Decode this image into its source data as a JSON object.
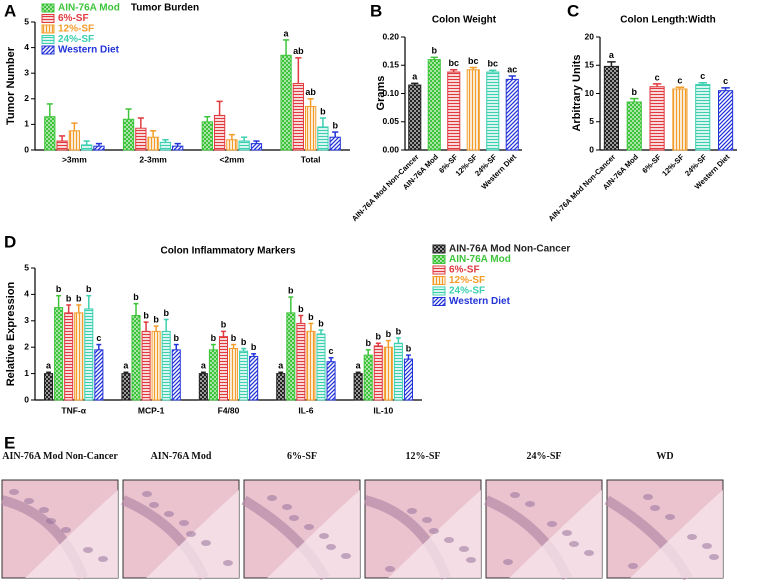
{
  "chart_data": [
    {
      "panel": "A",
      "type": "bar",
      "title": "Tumor Burden",
      "ylabel": "Tumor Number",
      "categories": [
        ">3mm",
        "2-3mm",
        "<2mm",
        "Total"
      ],
      "ylim": [
        0,
        5
      ],
      "yticks": [
        0,
        1,
        2,
        3,
        4,
        5
      ],
      "legend": "upper left",
      "series": [
        {
          "name": "AIN-76A Mod",
          "color": "#3ec43a",
          "hatch": "checker",
          "values": [
            1.3,
            1.2,
            1.1,
            3.7
          ],
          "errors": [
            0.5,
            0.4,
            0.2,
            0.6
          ],
          "significance": [
            null,
            null,
            null,
            "a"
          ]
        },
        {
          "name": "6%-SF",
          "color": "#e0393e",
          "hatch": "hlines",
          "values": [
            0.35,
            0.85,
            1.35,
            2.6
          ],
          "errors": [
            0.2,
            0.4,
            0.55,
            1.0
          ],
          "significance": [
            null,
            null,
            null,
            "ab"
          ]
        },
        {
          "name": "12%-SF",
          "color": "#f39c2a",
          "hatch": "vlines",
          "values": [
            0.75,
            0.5,
            0.4,
            1.7
          ],
          "errors": [
            0.3,
            0.25,
            0.2,
            0.3
          ],
          "significance": [
            null,
            null,
            null,
            "ab"
          ]
        },
        {
          "name": "24%-SF",
          "color": "#3ccfb0",
          "hatch": "hlines",
          "values": [
            0.2,
            0.3,
            0.35,
            0.9
          ],
          "errors": [
            0.15,
            0.1,
            0.15,
            0.35
          ],
          "significance": [
            null,
            null,
            null,
            "b"
          ]
        },
        {
          "name": "Western Diet",
          "color": "#2233d8",
          "hatch": "diag",
          "values": [
            0.15,
            0.15,
            0.25,
            0.5
          ],
          "errors": [
            0.1,
            0.1,
            0.1,
            0.2
          ],
          "significance": [
            null,
            null,
            null,
            "b"
          ]
        }
      ]
    },
    {
      "panel": "B",
      "type": "bar",
      "title": "Colon Weight",
      "ylabel": "Grams",
      "categories": [
        "AIN-76A Mod Non-Cancer",
        "AIN-76A Mod",
        "6%-SF",
        "12%-SF",
        "24%-SF",
        "Western Diet"
      ],
      "ylim": [
        0,
        0.2
      ],
      "yticks": [
        {
          "value": 0,
          "label": "0.00"
        },
        {
          "value": 0.05,
          "label": "0.05"
        },
        {
          "value": 0.1,
          "label": "0.10"
        },
        {
          "value": 0.15,
          "label": "0.15"
        },
        {
          "value": 0.2,
          "label": "0.20"
        }
      ],
      "values": [
        0.115,
        0.16,
        0.138,
        0.142,
        0.138,
        0.125
      ],
      "errors": [
        0.003,
        0.004,
        0.004,
        0.004,
        0.003,
        0.006
      ],
      "significance": [
        "a",
        "b",
        "bc",
        "bc",
        "bc",
        "ac"
      ],
      "colors": [
        "#222222",
        "#3ec43a",
        "#e0393e",
        "#f39c2a",
        "#3ccfb0",
        "#2233d8"
      ],
      "hatches": [
        "checker",
        "checker",
        "hlines",
        "vlines",
        "hlines",
        "diag"
      ]
    },
    {
      "panel": "C",
      "type": "bar",
      "title": "Colon Length:Width",
      "ylabel": "Arbitrary Units",
      "categories": [
        "AIN-76A Mod Non-Cancer",
        "AIN-76A Mod",
        "6%-SF",
        "12%-SF",
        "24%-SF",
        "Western Diet"
      ],
      "ylim": [
        0,
        20
      ],
      "yticks": [
        0,
        5,
        10,
        15,
        20
      ],
      "values": [
        14.8,
        8.5,
        11.2,
        10.8,
        11.6,
        10.5
      ],
      "errors": [
        0.8,
        0.6,
        0.5,
        0.3,
        0.3,
        0.5
      ],
      "significance": [
        "a",
        "b",
        "c",
        "c",
        "c",
        "c"
      ],
      "colors": [
        "#222222",
        "#3ec43a",
        "#e0393e",
        "#f39c2a",
        "#3ccfb0",
        "#2233d8"
      ],
      "hatches": [
        "checker",
        "checker",
        "hlines",
        "vlines",
        "hlines",
        "diag"
      ]
    },
    {
      "panel": "D",
      "type": "bar",
      "title": "Colon Inflammatory Markers",
      "ylabel": "Relative Expression",
      "categories": [
        "TNF-α",
        "MCP-1",
        "F4/80",
        "IL-6",
        "IL-10"
      ],
      "ylim": [
        0,
        5
      ],
      "yticks": [
        0,
        1,
        2,
        3,
        4,
        5
      ],
      "legend": "right",
      "series": [
        {
          "name": "AIN-76A Mod Non-Cancer",
          "color": "#222222",
          "hatch": "checker",
          "values": [
            1,
            1,
            1,
            1,
            1
          ],
          "errors": [
            0.05,
            0.05,
            0.05,
            0.05,
            0.05
          ],
          "significance": [
            "a",
            "a",
            "a",
            "a",
            "a"
          ]
        },
        {
          "name": "AIN-76A Mod",
          "color": "#3ec43a",
          "hatch": "checker",
          "values": [
            3.5,
            3.2,
            1.9,
            3.3,
            1.7
          ],
          "errors": [
            0.45,
            0.45,
            0.2,
            0.6,
            0.2
          ],
          "significance": [
            "b",
            "b",
            "b",
            "b",
            "b"
          ]
        },
        {
          "name": "6%-SF",
          "color": "#e0393e",
          "hatch": "hlines",
          "values": [
            3.3,
            2.6,
            2.4,
            2.9,
            2.05
          ],
          "errors": [
            0.3,
            0.35,
            0.2,
            0.3,
            0.1
          ],
          "significance": [
            "b",
            "b",
            "b",
            "b",
            "b"
          ]
        },
        {
          "name": "12%-SF",
          "color": "#f39c2a",
          "hatch": "vlines",
          "values": [
            3.3,
            2.6,
            1.95,
            2.6,
            2.0
          ],
          "errors": [
            0.3,
            0.2,
            0.15,
            0.3,
            0.25
          ],
          "significance": [
            "b",
            "b",
            "b",
            "b",
            "b"
          ]
        },
        {
          "name": "24%-SF",
          "color": "#3ccfb0",
          "hatch": "hlines",
          "values": [
            3.45,
            2.6,
            1.85,
            2.5,
            2.15
          ],
          "errors": [
            0.5,
            0.45,
            0.1,
            0.15,
            0.2
          ],
          "significance": [
            "b",
            "b",
            "b",
            "b",
            "b"
          ]
        },
        {
          "name": "Western Diet",
          "color": "#2233d8",
          "hatch": "diag",
          "values": [
            1.9,
            1.9,
            1.65,
            1.45,
            1.55
          ],
          "errors": [
            0.2,
            0.2,
            0.1,
            0.15,
            0.15
          ],
          "significance": [
            "c",
            "b",
            "b",
            "c",
            "b"
          ]
        }
      ]
    }
  ],
  "panel_e": {
    "panel": "E",
    "captions": [
      "AIN-76A Mod Non-Cancer",
      "AIN-76A Mod",
      "6%-SF",
      "12%-SF",
      "24%-SF",
      "WD"
    ]
  }
}
